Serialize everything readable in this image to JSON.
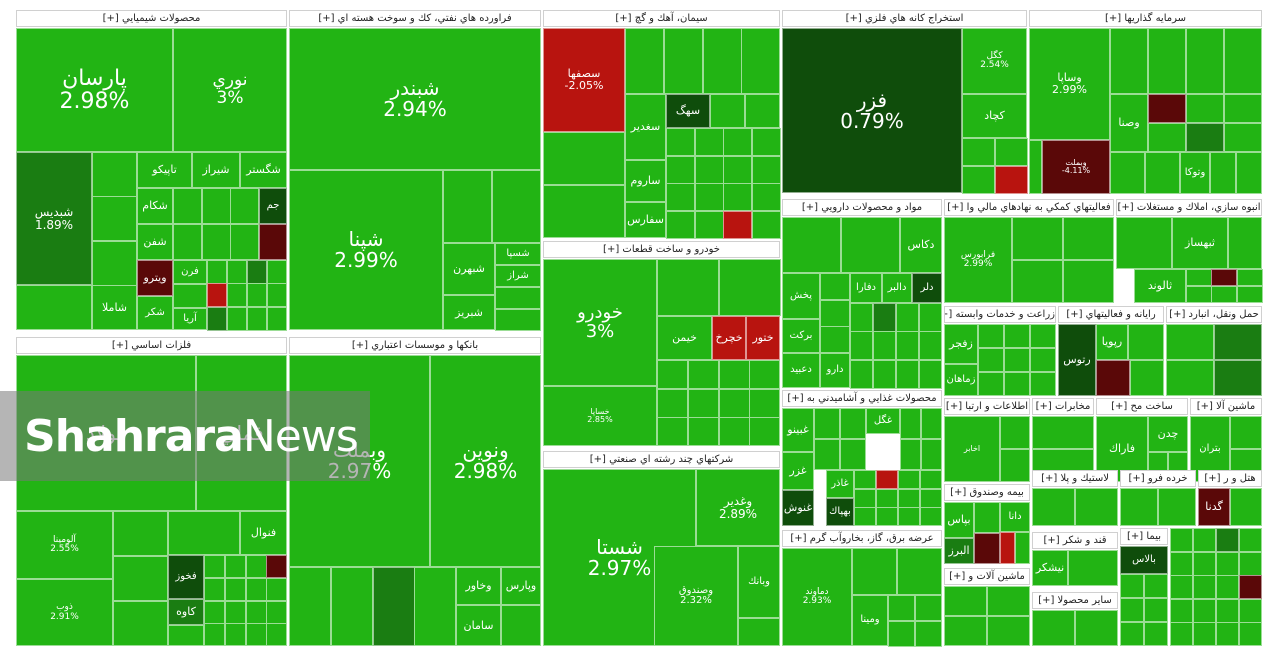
{
  "colors": {
    "pos": "#22b414",
    "pos_dark": "#1a7d12",
    "pos_deep": "#0f4d0b",
    "neg": "#b8140f",
    "neg_dark": "#5a0808",
    "header_bg": "#ffffff"
  },
  "watermark": {
    "part1": "Shahrara",
    "part2": "News"
  },
  "chart_data": {
    "type": "treemap",
    "sectors": [
      {
        "name": "محصولات شيميايي [+]",
        "stocks": [
          {
            "name": "پارسان",
            "change": "2.98%"
          },
          {
            "name": "نوري",
            "change": "3%"
          },
          {
            "name": "شبديس",
            "change": "1.89%"
          },
          {
            "name": "تاپيكو"
          },
          {
            "name": "شيراز"
          },
          {
            "name": "شگستر"
          },
          {
            "name": "شكام"
          },
          {
            "name": "شفن"
          },
          {
            "name": "ويترو"
          },
          {
            "name": "شاملا"
          },
          {
            "name": "جم"
          },
          {
            "name": "فرن"
          },
          {
            "name": "آريا"
          },
          {
            "name": "شكر"
          }
        ]
      },
      {
        "name": "فراورده هاي نفتي، كك و سوخت هسته اي [+]",
        "stocks": [
          {
            "name": "شبندر",
            "change": "2.94%"
          },
          {
            "name": "شپنا",
            "change": "2.99%"
          },
          {
            "name": "شبهرن"
          },
          {
            "name": "شسپا"
          },
          {
            "name": "شراز"
          },
          {
            "name": "شبريز"
          }
        ]
      },
      {
        "name": "سيمان، آهك و گچ [+]",
        "stocks": [
          {
            "name": "سصفها",
            "change": "-2.05%"
          },
          {
            "name": "سهگ"
          },
          {
            "name": "سغدير"
          },
          {
            "name": "ساروم"
          },
          {
            "name": "سفارس"
          }
        ]
      },
      {
        "name": "استخراج كانه هاي فلزي [+]",
        "stocks": [
          {
            "name": "فزر",
            "change": "0.79%"
          },
          {
            "name": "كچاد"
          },
          {
            "name": "كگل",
            "change": "2.54%"
          }
        ]
      },
      {
        "name": "سرمايه گذاريها [+]",
        "stocks": [
          {
            "name": "وساپا",
            "change": "2.99%"
          },
          {
            "name": "وصنا"
          },
          {
            "name": "وتوكا"
          },
          {
            "name": "وبملت",
            "change": "-4.11%"
          }
        ]
      },
      {
        "name": "فلزات اساسي [+]",
        "stocks": [
          {
            "name": "فولاد"
          },
          {
            "name": "فملي"
          },
          {
            "name": "فنوال"
          },
          {
            "name": "فخوز"
          },
          {
            "name": "كاوه"
          },
          {
            "name": "آلومينا",
            "change": "2.55%"
          },
          {
            "name": "ذوب",
            "change": "2.91%"
          }
        ]
      },
      {
        "name": "بانكها و موسسات اعتباري [+]",
        "stocks": [
          {
            "name": "وبملت",
            "change": "2.97%"
          },
          {
            "name": "ونوين",
            "change": "2.98%"
          },
          {
            "name": "وخاور"
          },
          {
            "name": "وپارس"
          },
          {
            "name": "سامان"
          }
        ]
      },
      {
        "name": "خودرو و ساخت قطعات [+]",
        "stocks": [
          {
            "name": "خودرو",
            "change": "3%"
          },
          {
            "name": "خساپا",
            "change": "2.85%"
          },
          {
            "name": "خيمن"
          },
          {
            "name": "خچرخ"
          },
          {
            "name": "ختور"
          }
        ]
      },
      {
        "name": "شركتهاي چند رشته اي صنعتي [+]",
        "stocks": [
          {
            "name": "شستا",
            "change": "2.97%"
          },
          {
            "name": "وغدير",
            "change": "2.89%"
          },
          {
            "name": "وصندوق",
            "change": "2.32%"
          },
          {
            "name": "وبانك"
          }
        ]
      },
      {
        "name": "مواد و محصولات دارويي [+]",
        "stocks": [
          {
            "name": "دكاس"
          },
          {
            "name": "دلر"
          },
          {
            "name": "پخش"
          },
          {
            "name": "بركت"
          },
          {
            "name": "دعبيد"
          },
          {
            "name": "دارو"
          },
          {
            "name": "دالبر"
          },
          {
            "name": "دفارا"
          }
        ]
      },
      {
        "name": "فعاليتهاي كمكي به نهادهاي مالي وا [+]",
        "stocks": [
          {
            "name": "فرابورس",
            "change": "2.99%"
          }
        ]
      },
      {
        "name": "انبوه سازي، املاك و مستغلات [+]",
        "stocks": [
          {
            "name": "ثبهساز"
          },
          {
            "name": "ثالوند"
          }
        ]
      },
      {
        "name": "زراعت و خدمات وابسته [+]",
        "stocks": [
          {
            "name": "زفجر"
          },
          {
            "name": "زماهان"
          }
        ]
      },
      {
        "name": "رايانه و فعاليتهاي [+]",
        "stocks": [
          {
            "name": "رتوس"
          },
          {
            "name": "رپويا"
          }
        ]
      },
      {
        "name": "حمل ونقل، انبارد [+]",
        "stocks": []
      },
      {
        "name": "محصولات غذايي و آشاميدني به [+]",
        "stocks": [
          {
            "name": "غبينو"
          },
          {
            "name": "غزر"
          },
          {
            "name": "غنوش"
          },
          {
            "name": "غگل"
          },
          {
            "name": "غاذر"
          },
          {
            "name": "بهپاك"
          }
        ]
      },
      {
        "name": "اطلاعات و ارتبا [+]",
        "stocks": [
          {
            "name": "اخابر"
          }
        ]
      },
      {
        "name": "مخابرات [+]",
        "stocks": []
      },
      {
        "name": "ساخت مح [+]",
        "stocks": [
          {
            "name": "فاراك"
          },
          {
            "name": "چدن"
          }
        ]
      },
      {
        "name": "ماشين آلا [+]",
        "stocks": [
          {
            "name": "بتران"
          }
        ]
      },
      {
        "name": "بيمه وصندوق [+]",
        "stocks": [
          {
            "name": "بپاس"
          },
          {
            "name": "البرز"
          },
          {
            "name": "دانا"
          }
        ]
      },
      {
        "name": "عرضه برق، گاز، بخاروآب گرم [+]",
        "stocks": [
          {
            "name": "دماوند",
            "change": "2.93%"
          },
          {
            "name": "ومينا"
          }
        ]
      },
      {
        "name": "ماشين آلات و [+]",
        "stocks": []
      },
      {
        "name": "لاستيك و پلا [+]",
        "stocks": []
      },
      {
        "name": "خرده فرو [+]",
        "stocks": []
      },
      {
        "name": "هتل و ر [+]",
        "stocks": [
          {
            "name": "گدنا"
          }
        ]
      },
      {
        "name": "قند و شكر [+]",
        "stocks": [
          {
            "name": "نيشكر"
          }
        ]
      },
      {
        "name": "ساير محصولا [+]",
        "stocks": []
      },
      {
        "name": "بيما [+]",
        "stocks": [
          {
            "name": "بالاس"
          }
        ]
      }
    ]
  }
}
